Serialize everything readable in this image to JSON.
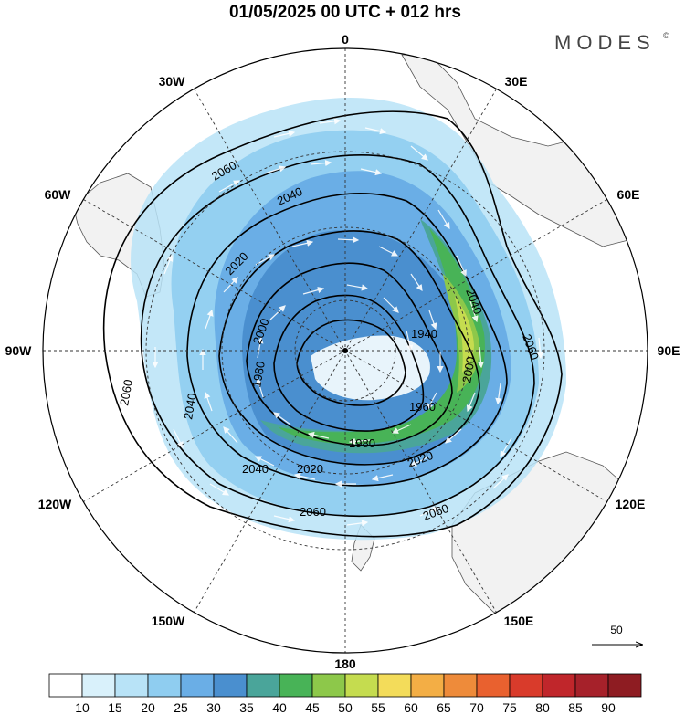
{
  "header": {
    "title": "01/05/2025  00 UTC  + 012 hrs",
    "brand": "MODES",
    "brand_mark": "©"
  },
  "map": {
    "projection": "polar-stereographic-south",
    "longitude_labels": [
      "0",
      "30E",
      "60E",
      "90E",
      "120E",
      "150E",
      "180",
      "150W",
      "120W",
      "90W",
      "60W",
      "30W"
    ],
    "contour_labels": [
      "1940",
      "1960",
      "1980",
      "1980",
      "2000",
      "2000",
      "2020",
      "2020",
      "2020",
      "2040",
      "2040",
      "2040",
      "2040",
      "2060",
      "2060",
      "2060",
      "2060",
      "2060"
    ],
    "colors": {
      "land": "#f2f2f2",
      "coast": "#555555",
      "contour": "#000000",
      "vector": "#ffffff"
    }
  },
  "vector_reference": {
    "value": "50"
  },
  "colorbar": {
    "ticks": [
      "10",
      "15",
      "20",
      "25",
      "30",
      "35",
      "40",
      "45",
      "50",
      "55",
      "60",
      "65",
      "70",
      "75",
      "80",
      "85",
      "90"
    ],
    "colors": [
      "#ffffff",
      "#d9f1fb",
      "#b8e3f7",
      "#8fcdf0",
      "#6aaee6",
      "#4a8fcf",
      "#4aa59a",
      "#48b357",
      "#8dc84a",
      "#c5dc4f",
      "#f3dc5a",
      "#f3ae45",
      "#ee8b3a",
      "#e9612f",
      "#d93b2b",
      "#c0262b",
      "#a6212a",
      "#8e1c22"
    ]
  }
}
